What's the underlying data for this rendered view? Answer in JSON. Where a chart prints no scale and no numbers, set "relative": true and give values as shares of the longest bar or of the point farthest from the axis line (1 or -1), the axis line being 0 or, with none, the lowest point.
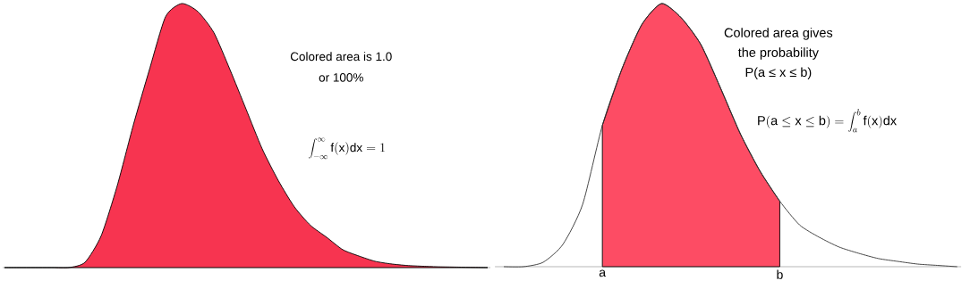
{
  "chart_data": [
    {
      "type": "area",
      "relative": true,
      "color": "#f73450",
      "categories": [
        null,
        null,
        null,
        null,
        null,
        null,
        null,
        null,
        null,
        null,
        null,
        null,
        null,
        null,
        null,
        null,
        null,
        null,
        null,
        null,
        null,
        null,
        null,
        null,
        null,
        null,
        null,
        null,
        null,
        null,
        null
      ],
      "values": [
        0,
        0,
        0,
        0,
        0,
        0.02,
        0.12,
        0.31,
        0.54,
        0.75,
        0.95,
        1,
        0.97,
        0.89,
        0.75,
        0.6,
        0.45,
        0.33,
        0.23,
        0.16,
        0.115,
        0.068,
        0.044,
        0.024,
        0.014,
        0.008,
        0.005,
        0.003,
        0.002,
        0.001,
        0
      ],
      "annotations": [
        "Colored area is 1.0",
        "or 100%",
        "\\int_{-\\infty}^{\\infty}\\mathrm{f(x)dx} = 1"
      ]
    },
    {
      "type": "area",
      "relative": true,
      "categories": [
        null,
        null,
        null,
        null,
        null,
        "a",
        null,
        null,
        null,
        null,
        null,
        null,
        null,
        null,
        "b",
        null,
        null,
        null,
        null,
        null,
        null,
        null,
        null,
        null
      ],
      "series": [
        {
          "type": "area",
          "color": "#fd4c64",
          "values": [
            null,
            null,
            null,
            null,
            null,
            0.537,
            0.753,
            0.92,
            1,
            0.946,
            0.844,
            0.678,
            0.505,
            0.363,
            0.249,
            null,
            null,
            null,
            null,
            null,
            null,
            null,
            null,
            null
          ]
        },
        {
          "type": "line",
          "color": "#333333",
          "values": [
            0,
            0,
            0.017,
            0.085,
            0.237,
            0.537,
            0.753,
            0.92,
            1,
            0.946,
            0.844,
            0.678,
            0.505,
            0.363,
            0.249,
            0.159,
            0.112,
            0.075,
            0.051,
            0.031,
            0.02,
            0.01,
            0.005,
            0
          ]
        }
      ],
      "annotations": [
        "Colored area gives",
        "the probability",
        "P(a ≤ x ≤ b)",
        "\\mathrm{P(a \\le x \\le b)} = \\int_{a}^{b}\\mathrm{f(x)dx}"
      ]
    }
  ]
}
